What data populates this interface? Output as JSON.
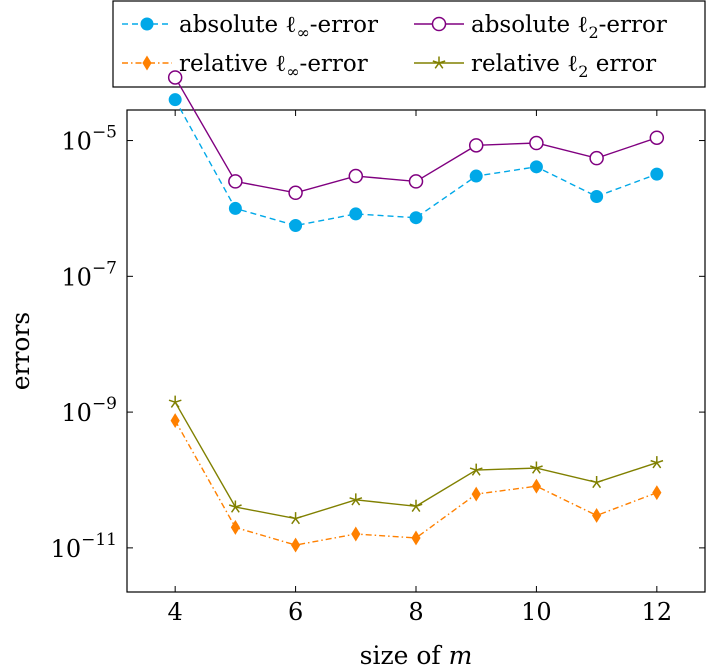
{
  "chart_data": {
    "type": "line",
    "xlabel": "size of m",
    "ylabel": "errors",
    "x": [
      4,
      5,
      6,
      7,
      8,
      9,
      10,
      11,
      12
    ],
    "xlim": [
      3.2,
      12.8
    ],
    "ylim_log10": [
      -11.65,
      -4.55
    ],
    "yscale": "log",
    "x_ticks": [
      4,
      6,
      8,
      10,
      12
    ],
    "y_ticks": [
      {
        "exp": -5,
        "label": "10^-5"
      },
      {
        "exp": -7,
        "label": "10^-7"
      },
      {
        "exp": -9,
        "label": "10^-9"
      },
      {
        "exp": -11,
        "label": "10^-11"
      }
    ],
    "grid": false,
    "legend_position": "top, above plot",
    "series": [
      {
        "name": "absolute ℓ∞-error",
        "color": "#00a8e8",
        "marker": "circle-filled",
        "line": "dashed",
        "values": [
          4e-05,
          1e-06,
          5.6e-07,
          8.3e-07,
          7.3e-07,
          3e-06,
          4.1e-06,
          1.5e-06,
          3.2e-06
        ]
      },
      {
        "name": "absolute ℓ2-error",
        "color": "#800080",
        "marker": "circle-open",
        "line": "solid",
        "values": [
          8.5e-05,
          2.5e-06,
          1.7e-06,
          3e-06,
          2.5e-06,
          8.5e-06,
          9.2e-06,
          5.5e-06,
          1.1e-05
        ]
      },
      {
        "name": "relative ℓ∞-error",
        "color": "#ff8000",
        "marker": "diamond",
        "line": "dashdot",
        "values": [
          7.5e-10,
          2e-11,
          1.1e-11,
          1.6e-11,
          1.4e-11,
          6.2e-11,
          8.1e-11,
          3e-11,
          6.5e-11
        ]
      },
      {
        "name": "relative ℓ2 error",
        "color": "#808000",
        "marker": "star",
        "line": "solid",
        "values": [
          1.4e-09,
          4e-11,
          2.7e-11,
          5.1e-11,
          4.1e-11,
          1.4e-10,
          1.5e-10,
          9.2e-11,
          1.8e-10
        ]
      }
    ]
  }
}
